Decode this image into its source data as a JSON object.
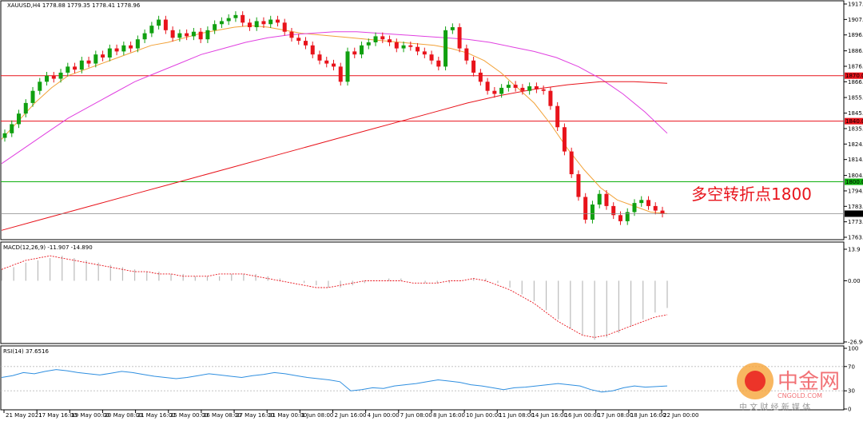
{
  "chart_data": {
    "type": "candlestick",
    "symbol_header": "XAUUSD,H4  1778.88 1779.35 1778.41 1778.96",
    "price_ticks": [
      "1917.30",
      "1907.10",
      "1896.90",
      "1886.40",
      "1876.20",
      "1866.00",
      "1855.60",
      "1845.30",
      "1835.10",
      "1824.90",
      "1814.70",
      "1804.20",
      "1794.00",
      "1783.80",
      "1773.60",
      "1763.40"
    ],
    "price_range": [
      1763.4,
      1917.3
    ],
    "current_price": 1778.96,
    "x_labels": [
      "21 May 2021",
      "17 May 16:00",
      "19 May 00:00",
      "20 May 08:00",
      "21 May 16:00",
      "25 May 00:00",
      "26 May 08:00",
      "27 May 16:00",
      "31 May 00:00",
      "1 Jun 08:00",
      "2 Jun 16:00",
      "4 Jun 00:00",
      "7 Jun 08:00",
      "8 Jun 16:00",
      "10 Jun 00:00",
      "11 Jun 08:00",
      "14 Jun 16:00",
      "16 Jun 00:00",
      "17 Jun 08:00",
      "18 Jun 16:00",
      "22 Jun 00:00"
    ],
    "levels": [
      {
        "price": 1870.0,
        "label": "1870.00",
        "color": "#e8131b"
      },
      {
        "price": 1840.0,
        "label": "1840.00",
        "color": "#e8131b"
      },
      {
        "price": 1800.0,
        "label": "1800.00",
        "color": "#10b010"
      }
    ],
    "annotation": "多空转折点1800",
    "candle_close_path": [
      1832,
      1838,
      1845,
      1852,
      1860,
      1866,
      1870,
      1868,
      1872,
      1876,
      1874,
      1880,
      1878,
      1884,
      1882,
      1888,
      1886,
      1890,
      1888,
      1894,
      1898,
      1903,
      1907,
      1900,
      1895,
      1898,
      1896,
      1899,
      1894,
      1900,
      1904,
      1906,
      1908,
      1910,
      1905,
      1902,
      1906,
      1904,
      1907,
      1905,
      1899,
      1895,
      1893,
      1890,
      1884,
      1880,
      1878,
      1876,
      1866,
      1886,
      1884,
      1890,
      1892,
      1896,
      1894,
      1892,
      1888,
      1890,
      1889,
      1886,
      1884,
      1880,
      1876,
      1900,
      1902,
      1888,
      1880,
      1872,
      1866,
      1860,
      1858,
      1862,
      1864,
      1862,
      1860,
      1863,
      1861,
      1860,
      1850,
      1836,
      1820,
      1805,
      1790,
      1775,
      1785,
      1792,
      1784,
      1778,
      1774,
      1780,
      1786,
      1788,
      1784,
      1781,
      1779
    ],
    "ma_fast_path": [
      1828,
      1840,
      1852,
      1862,
      1870,
      1874,
      1878,
      1882,
      1886,
      1890,
      1892,
      1895,
      1898,
      1900,
      1902,
      1903,
      1902,
      1900,
      1898,
      1897,
      1896,
      1895,
      1894,
      1893,
      1892,
      1891,
      1890,
      1888,
      1885,
      1880,
      1872,
      1862,
      1852,
      1838,
      1822,
      1808,
      1796,
      1788,
      1784,
      1780,
      1779
    ],
    "ma_mid_path": [
      1812,
      1822,
      1832,
      1842,
      1850,
      1858,
      1866,
      1872,
      1878,
      1884,
      1888,
      1892,
      1895,
      1897,
      1898,
      1899,
      1899,
      1898,
      1897,
      1896,
      1895,
      1894,
      1892,
      1889,
      1886,
      1882,
      1876,
      1868,
      1858,
      1846,
      1832
    ],
    "ma_slow_path": [
      1768,
      1774,
      1780,
      1786,
      1792,
      1798,
      1804,
      1810,
      1816,
      1822,
      1828,
      1834,
      1840,
      1846,
      1852,
      1857,
      1861,
      1864,
      1866,
      1866,
      1865
    ],
    "macd_label": "MACD(12,26,9) -11.907 -14.890",
    "macd_ticks": [
      "13.9",
      "0.00",
      "-26.966"
    ],
    "macd_range": [
      -26.966,
      13.9
    ],
    "macd_hist": [
      5,
      6,
      8,
      9,
      10,
      11,
      10,
      9,
      8,
      7,
      6,
      5,
      4,
      4,
      3,
      3,
      2,
      2,
      2,
      3,
      3,
      3,
      2,
      1,
      0,
      -1,
      -2,
      -3,
      -3,
      -2,
      -1,
      0,
      1,
      1,
      0,
      -1,
      -1,
      -1,
      0,
      1,
      1,
      -1,
      -3,
      -6,
      -9,
      -13,
      -17,
      -21,
      -24,
      -26,
      -25,
      -23,
      -20,
      -17,
      -14,
      -12
    ],
    "macd_signal": [
      5,
      7,
      9,
      10,
      11,
      10,
      9,
      8,
      7,
      6,
      5,
      4,
      4,
      3,
      3,
      2,
      2,
      2,
      3,
      3,
      3,
      2,
      1,
      0,
      -1,
      -2,
      -3,
      -3,
      -2,
      -1,
      0,
      0,
      0,
      0,
      -1,
      -1,
      -1,
      0,
      0,
      1,
      0,
      -2,
      -4,
      -7,
      -10,
      -14,
      -18,
      -21,
      -24,
      -25,
      -24,
      -22,
      -20,
      -18,
      -16,
      -15
    ],
    "rsi_label": "RSI(14) 37.6516",
    "rsi_ticks": [
      "100",
      "70",
      "30",
      "0"
    ],
    "rsi_range": [
      0,
      100
    ],
    "rsi_values": [
      52,
      55,
      60,
      58,
      62,
      65,
      63,
      60,
      58,
      56,
      59,
      62,
      60,
      57,
      54,
      52,
      50,
      52,
      55,
      58,
      56,
      54,
      52,
      55,
      57,
      60,
      58,
      55,
      52,
      50,
      48,
      45,
      30,
      32,
      35,
      34,
      38,
      40,
      42,
      45,
      48,
      46,
      44,
      40,
      38,
      35,
      32,
      35,
      36,
      38,
      40,
      42,
      40,
      38,
      32,
      28,
      30,
      35,
      38,
      36,
      37,
      38
    ]
  },
  "watermark": {
    "brand": "中金网",
    "domain": "CNGOLD.COM",
    "tagline": "中 文 财 经 新 媒 体"
  },
  "colors": {
    "bull": "#10a010",
    "bear": "#e8131b",
    "ma_fast": "#f2a238",
    "ma_mid": "#e040e0",
    "ma_slow": "#e8131b",
    "macd": "#bbbbbb",
    "macd_signal": "#e8131b",
    "rsi": "#2f8fe0"
  }
}
